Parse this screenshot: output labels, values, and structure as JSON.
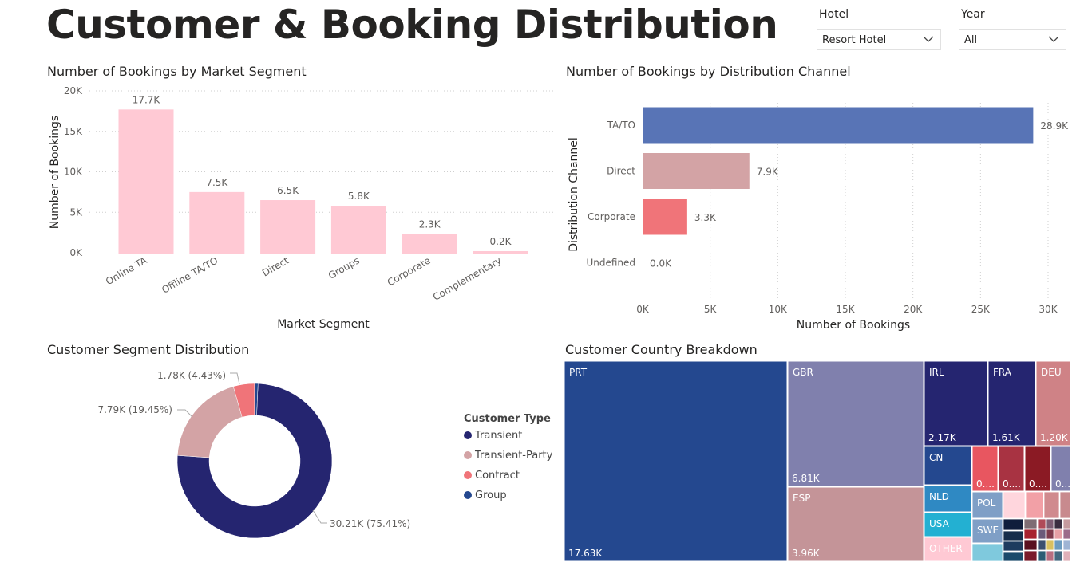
{
  "page": {
    "title": "Customer & Booking Distribution"
  },
  "slicers": {
    "hotel": {
      "label": "Hotel",
      "value": "Resort Hotel"
    },
    "year": {
      "label": "Year",
      "value": "All"
    }
  },
  "colors": {
    "pink_bar": "#ffc9d4",
    "tato": "#5874b6",
    "direct": "#d3a3a5",
    "corporate": "#f07479",
    "transient": "#252570",
    "transient_party": "#d3a3a5",
    "contract": "#f07479",
    "group": "#24488f"
  },
  "chart_data": [
    {
      "id": "market_segment",
      "type": "bar",
      "title": "Number of Bookings by Market Segment",
      "xlabel": "Market Segment",
      "ylabel": "Number of Bookings",
      "categories": [
        "Online TA",
        "Offline TA/TO",
        "Direct",
        "Groups",
        "Corporate",
        "Complementary"
      ],
      "values": [
        17700,
        7500,
        6500,
        5800,
        2300,
        200
      ],
      "data_labels": [
        "17.7K",
        "7.5K",
        "6.5K",
        "5.8K",
        "2.3K",
        "0.2K"
      ],
      "yticks": [
        "0K",
        "5K",
        "10K",
        "15K",
        "20K"
      ],
      "ylim": [
        0,
        20000
      ],
      "grid": true
    },
    {
      "id": "distribution_channel",
      "type": "bar",
      "orientation": "horizontal",
      "title": "Number of Bookings by Distribution Channel",
      "xlabel": "Number of Bookings",
      "ylabel": "Distribution Channel",
      "categories": [
        "TA/TO",
        "Direct",
        "Corporate",
        "Undefined"
      ],
      "values": [
        28900,
        7900,
        3300,
        0
      ],
      "data_labels": [
        "28.9K",
        "7.9K",
        "3.3K",
        "0.0K"
      ],
      "xticks": [
        "0K",
        "5K",
        "10K",
        "15K",
        "20K",
        "25K",
        "30K"
      ],
      "xlim": [
        0,
        30000
      ],
      "grid": true
    },
    {
      "id": "customer_segment",
      "type": "pie",
      "title": "Customer Segment Distribution",
      "legend_title": "Customer Type",
      "legend_position": "right",
      "slices": [
        {
          "name": "Transient",
          "value": 30210,
          "percent": 75.41,
          "label": "30.21K (75.41%)"
        },
        {
          "name": "Transient-Party",
          "value": 7790,
          "percent": 19.45,
          "label": "7.79K (19.45%)"
        },
        {
          "name": "Contract",
          "value": 1780,
          "percent": 4.43,
          "label": "1.78K (4.43%)"
        },
        {
          "name": "Group",
          "value": 280,
          "percent": 0.71,
          "label": ""
        }
      ]
    },
    {
      "id": "country",
      "type": "treemap",
      "title": "Customer Country Breakdown",
      "items": [
        {
          "name": "PRT",
          "value_label": "17.63K"
        },
        {
          "name": "GBR",
          "value_label": "6.81K"
        },
        {
          "name": "ESP",
          "value_label": "3.96K"
        },
        {
          "name": "IRL",
          "value_label": "2.17K"
        },
        {
          "name": "FRA",
          "value_label": "1.61K"
        },
        {
          "name": "DEU",
          "value_label": "1.20K"
        },
        {
          "name": "CN",
          "value_label": ""
        },
        {
          "name": "NLD",
          "value_label": ""
        },
        {
          "name": "USA",
          "value_label": ""
        },
        {
          "name": "OTHER",
          "value_label": ""
        },
        {
          "name": "POL",
          "value_label": ""
        },
        {
          "name": "SWE",
          "value_label": ""
        },
        {
          "name": "",
          "value_label": "0...."
        },
        {
          "name": "",
          "value_label": "0...."
        },
        {
          "name": "",
          "value_label": "0...."
        },
        {
          "name": "",
          "value_label": "0...."
        }
      ]
    }
  ]
}
